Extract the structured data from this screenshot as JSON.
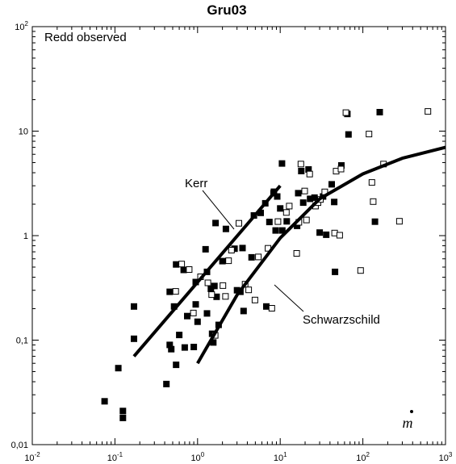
{
  "chart_data": {
    "type": "scatter",
    "title": "Gru03",
    "xlabel": "m",
    "ylabel": "",
    "xscale": "log",
    "yscale": "log",
    "xlim": [
      0.01,
      1000
    ],
    "ylim": [
      0.01,
      100
    ],
    "grid": false,
    "x_tick_labels": [
      {
        "base": "10",
        "exp": "-2"
      },
      {
        "base": "10",
        "exp": "-1"
      },
      {
        "base": "10",
        "exp": "0"
      },
      {
        "base": "10",
        "exp": "1"
      },
      {
        "base": "10",
        "exp": "2"
      },
      {
        "base": "10",
        "exp": "3"
      }
    ],
    "y_tick_labels": [
      {
        "text": "0,01"
      },
      {
        "text": "0,1"
      },
      {
        "text": "1"
      },
      {
        "text": "10"
      },
      {
        "base": "10",
        "exp": "2"
      }
    ],
    "annotations": {
      "panel_label": "Redd observed",
      "kerr": "Kerr",
      "schwarzschild": "Schwarzschild"
    },
    "series": [
      {
        "marker": "filled-square",
        "points": [
          [
            0.075,
            0.026
          ],
          [
            0.11,
            0.054
          ],
          [
            0.125,
            0.021
          ],
          [
            0.125,
            0.018
          ],
          [
            0.17,
            0.21
          ],
          [
            0.17,
            0.103
          ],
          [
            0.42,
            0.038
          ],
          [
            0.46,
            0.29
          ],
          [
            0.46,
            0.09
          ],
          [
            0.48,
            0.082
          ],
          [
            0.52,
            0.21
          ],
          [
            0.55,
            0.53
          ],
          [
            0.55,
            0.058
          ],
          [
            0.6,
            0.112
          ],
          [
            0.68,
            0.47
          ],
          [
            0.7,
            0.085
          ],
          [
            0.75,
            0.17
          ],
          [
            0.9,
            0.086
          ],
          [
            0.95,
            0.36
          ],
          [
            0.95,
            0.22
          ],
          [
            1.0,
            0.15
          ],
          [
            1.25,
            0.74
          ],
          [
            1.3,
            0.45
          ],
          [
            1.3,
            0.18
          ],
          [
            1.45,
            0.31
          ],
          [
            1.5,
            0.115
          ],
          [
            1.55,
            0.095
          ],
          [
            1.6,
            0.33
          ],
          [
            1.65,
            1.32
          ],
          [
            1.7,
            0.26
          ],
          [
            1.8,
            0.14
          ],
          [
            2.0,
            0.57
          ],
          [
            2.2,
            1.16
          ],
          [
            2.8,
            0.75
          ],
          [
            3.0,
            0.3
          ],
          [
            3.3,
            0.29
          ],
          [
            3.5,
            0.76
          ],
          [
            3.6,
            0.19
          ],
          [
            4.5,
            0.62
          ],
          [
            4.8,
            1.56
          ],
          [
            5.8,
            1.65
          ],
          [
            6.6,
            2.04
          ],
          [
            6.8,
            0.21
          ],
          [
            7.4,
            1.35
          ],
          [
            8.3,
            2.55
          ],
          [
            8.4,
            2.63
          ],
          [
            8.8,
            1.12
          ],
          [
            9.2,
            2.37
          ],
          [
            10.0,
            1.82
          ],
          [
            10.5,
            4.9
          ],
          [
            10.6,
            1.12
          ],
          [
            12.0,
            1.37
          ],
          [
            16.0,
            1.24
          ],
          [
            16.5,
            2.55
          ],
          [
            18.0,
            4.15
          ],
          [
            19.0,
            2.07
          ],
          [
            22.0,
            4.3
          ],
          [
            23.0,
            2.25
          ],
          [
            26.0,
            2.31
          ],
          [
            30.0,
            1.07
          ],
          [
            33.0,
            2.37
          ],
          [
            36.0,
            1.02
          ],
          [
            42.0,
            3.1
          ],
          [
            45.0,
            2.1
          ],
          [
            46.0,
            0.45
          ],
          [
            55.0,
            4.7
          ],
          [
            65.0,
            14.6
          ],
          [
            67.0,
            9.3
          ],
          [
            140.0,
            1.36
          ],
          [
            160.0,
            15.2
          ]
        ]
      },
      {
        "marker": "open-square",
        "points": [
          [
            0.55,
            0.29
          ],
          [
            0.65,
            0.53
          ],
          [
            0.8,
            0.47
          ],
          [
            0.9,
            0.18
          ],
          [
            1.1,
            0.4
          ],
          [
            1.35,
            0.35
          ],
          [
            1.5,
            0.27
          ],
          [
            1.65,
            0.11
          ],
          [
            2.05,
            0.33
          ],
          [
            2.2,
            0.26
          ],
          [
            2.4,
            0.57
          ],
          [
            2.6,
            0.72
          ],
          [
            3.2,
            1.3
          ],
          [
            3.8,
            0.34
          ],
          [
            4.2,
            0.3
          ],
          [
            5.0,
            0.24
          ],
          [
            5.5,
            0.62
          ],
          [
            7.2,
            0.75
          ],
          [
            8.0,
            0.2
          ],
          [
            9.5,
            1.35
          ],
          [
            12.0,
            1.65
          ],
          [
            13.0,
            1.9
          ],
          [
            16.0,
            0.67
          ],
          [
            17.0,
            1.33
          ],
          [
            18.0,
            4.8
          ],
          [
            20.0,
            2.65
          ],
          [
            21.0,
            1.4
          ],
          [
            23.0,
            3.85
          ],
          [
            27.0,
            1.9
          ],
          [
            29.0,
            2.05
          ],
          [
            31.0,
            2.2
          ],
          [
            35.0,
            2.6
          ],
          [
            46.0,
            1.05
          ],
          [
            48.0,
            4.1
          ],
          [
            53.0,
            1.0
          ],
          [
            55.0,
            4.3
          ],
          [
            63.0,
            14.9
          ],
          [
            95.0,
            0.46
          ],
          [
            120.0,
            9.3
          ],
          [
            130.0,
            3.2
          ],
          [
            135.0,
            2.1
          ],
          [
            180.0,
            4.8
          ],
          [
            280.0,
            1.36
          ],
          [
            620.0,
            15.3
          ]
        ]
      },
      {
        "name": "Kerr",
        "type": "line",
        "points": [
          [
            0.17,
            0.07
          ],
          [
            10.0,
            3.0
          ]
        ]
      },
      {
        "name": "Schwarzschild",
        "type": "line",
        "points": [
          [
            1.0,
            0.06
          ],
          [
            3.0,
            0.27
          ],
          [
            10.0,
            0.95
          ],
          [
            30.0,
            2.25
          ],
          [
            100.0,
            3.9
          ],
          [
            300.0,
            5.5
          ],
          [
            1000.0,
            7.0
          ]
        ]
      }
    ]
  }
}
